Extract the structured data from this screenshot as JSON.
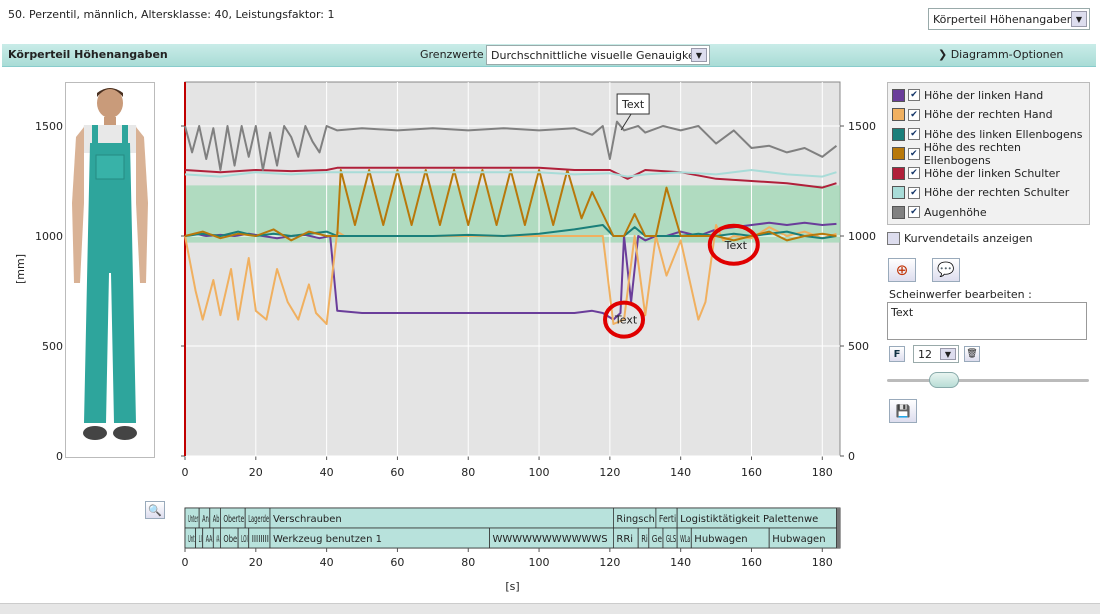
{
  "info_text": "50. Perzentil, männlich, Altersklasse: 40, Leistungsfaktor: 1",
  "top_select": "Körperteil Höhenangaben",
  "panel_title": "Körperteil Höhenangaben",
  "grenz_label": "Grenzwerte :",
  "grenz_select": "Durchschnittliche visuelle Genauigkeit",
  "diagram_options": "❯ Diagramm-Optionen",
  "kurvendetails": "Kurvendetails anzeigen",
  "scheinwerfer_label": "Scheinwerfer bearbeiten :",
  "scheinwerfer_text": "Text",
  "font_size": "12",
  "f_label": "F",
  "colors": {
    "accent": "#b8e2dc",
    "zone": "#9fd8b4",
    "redline": "#c00000"
  },
  "chart_data": {
    "type": "line",
    "xlabel": "[s]",
    "ylabel": "[mm]",
    "xlim": [
      0,
      185
    ],
    "ylim": [
      0,
      1700
    ],
    "x_ticks": [
      0,
      20,
      40,
      60,
      80,
      100,
      120,
      140,
      160,
      180
    ],
    "y_ticks": [
      0,
      500,
      1000,
      1500
    ],
    "x_tick_labels": [
      "0",
      "20",
      "40",
      "60",
      "80",
      "100",
      "120",
      "140",
      "160",
      "180"
    ],
    "y_tick_labels": [
      "0",
      "500",
      "1000",
      "1500"
    ],
    "zone": [
      970,
      1230
    ],
    "grid": true,
    "annotations": [
      {
        "text": "Text",
        "x": 126,
        "y": 1600,
        "boxed": true
      },
      {
        "text": "Text",
        "x": 124,
        "y": 620,
        "circled": true
      },
      {
        "text": "Text",
        "x": 155,
        "y": 960,
        "circled": true
      }
    ],
    "series": [
      {
        "name": "Höhe der linken Hand",
        "color": "#6a3d9a",
        "x": [
          0,
          3,
          6,
          10,
          14,
          18,
          22,
          26,
          30,
          34,
          38,
          41,
          43,
          50,
          60,
          70,
          80,
          90,
          100,
          110,
          115,
          118,
          121,
          123,
          124,
          126,
          128,
          130,
          133,
          136,
          140,
          145,
          150,
          155,
          160,
          165,
          170,
          175,
          180,
          184
        ],
        "y": [
          1000,
          1010,
          1000,
          1005,
          1000,
          1010,
          1000,
          990,
          1000,
          1005,
          990,
          1000,
          660,
          650,
          650,
          650,
          650,
          650,
          650,
          650,
          660,
          650,
          620,
          650,
          1000,
          700,
          1000,
          980,
          1000,
          1000,
          1020,
          1000,
          1030,
          1040,
          1050,
          1060,
          1050,
          1060,
          1050,
          1055
        ]
      },
      {
        "name": "Höhe der rechten Hand",
        "color": "#f0b060",
        "x": [
          0,
          3,
          5,
          8,
          10,
          13,
          15,
          18,
          20,
          23,
          26,
          29,
          32,
          35,
          37,
          40,
          43,
          45,
          50,
          60,
          70,
          80,
          90,
          100,
          110,
          115,
          118,
          121,
          124,
          127,
          130,
          133,
          136,
          140,
          145,
          147,
          150,
          152,
          155,
          160,
          165,
          170,
          175,
          180,
          184
        ],
        "y": [
          1000,
          750,
          620,
          800,
          640,
          850,
          620,
          900,
          660,
          620,
          850,
          700,
          620,
          780,
          650,
          600,
          1020,
          1000,
          1000,
          1000,
          1000,
          1000,
          1000,
          1000,
          1000,
          1000,
          1000,
          600,
          620,
          1000,
          640,
          1000,
          820,
          980,
          620,
          700,
          1050,
          980,
          1000,
          990,
          1040,
          1000,
          1020,
          990,
          1010
        ]
      },
      {
        "name": "Höhe des linken Ellenbogens",
        "color": "#1a7f7a",
        "x": [
          0,
          5,
          10,
          15,
          20,
          25,
          30,
          35,
          40,
          43,
          50,
          60,
          70,
          80,
          90,
          100,
          110,
          118,
          121,
          124,
          127,
          130,
          135,
          140,
          145,
          150,
          155,
          160,
          165,
          170,
          175,
          180,
          184
        ],
        "y": [
          1000,
          1010,
          1000,
          1020,
          1000,
          1010,
          1000,
          1010,
          1020,
          1000,
          1000,
          1000,
          1000,
          1005,
          1000,
          1010,
          1030,
          1050,
          1000,
          1000,
          1040,
          1000,
          1000,
          1000,
          1010,
          1000,
          1010,
          1000,
          1010,
          1020,
          1000,
          990,
          1000
        ]
      },
      {
        "name": "Höhe des rechten Ellenbogens",
        "color": "#b8780a",
        "x": [
          0,
          5,
          10,
          15,
          20,
          25,
          30,
          35,
          40,
          43,
          44,
          48,
          52,
          56,
          60,
          64,
          68,
          72,
          76,
          80,
          84,
          88,
          92,
          96,
          100,
          104,
          108,
          112,
          115,
          118,
          121,
          124,
          127,
          130,
          133,
          136,
          140,
          145,
          150,
          155,
          160,
          165,
          170,
          175,
          180,
          184
        ],
        "y": [
          1000,
          1020,
          990,
          1010,
          1000,
          1030,
          980,
          1020,
          1000,
          1000,
          1300,
          1050,
          1300,
          1050,
          1300,
          1050,
          1300,
          1050,
          1300,
          1050,
          1300,
          1050,
          1300,
          1050,
          1300,
          1050,
          1300,
          1080,
          1200,
          1100,
          1000,
          1000,
          1100,
          1000,
          1000,
          1220,
          1000,
          1000,
          1000,
          980,
          1000,
          1020,
          980,
          1000,
          1010,
          1000
        ]
      },
      {
        "name": "Höhe der linken Schulter",
        "color": "#b0203a",
        "x": [
          0,
          10,
          20,
          30,
          40,
          43,
          50,
          60,
          70,
          80,
          90,
          100,
          110,
          120,
          125,
          130,
          140,
          150,
          160,
          170,
          180,
          184
        ],
        "y": [
          1300,
          1290,
          1300,
          1295,
          1300,
          1310,
          1310,
          1310,
          1310,
          1310,
          1310,
          1310,
          1300,
          1300,
          1260,
          1300,
          1290,
          1260,
          1250,
          1240,
          1220,
          1240
        ]
      },
      {
        "name": "Höhe der rechten Schulter",
        "color": "#a8dcd8",
        "x": [
          0,
          10,
          20,
          30,
          40,
          43,
          50,
          60,
          70,
          80,
          90,
          100,
          110,
          120,
          125,
          130,
          140,
          150,
          160,
          170,
          180,
          184
        ],
        "y": [
          1280,
          1270,
          1290,
          1280,
          1290,
          1290,
          1290,
          1290,
          1290,
          1290,
          1290,
          1290,
          1280,
          1285,
          1270,
          1280,
          1290,
          1280,
          1300,
          1280,
          1270,
          1290
        ]
      },
      {
        "name": "Augenhöhe",
        "color": "#808080",
        "x": [
          0,
          2,
          4,
          6,
          8,
          10,
          12,
          14,
          16,
          18,
          20,
          22,
          24,
          26,
          28,
          30,
          32,
          34,
          36,
          38,
          40,
          43,
          50,
          60,
          70,
          80,
          90,
          100,
          110,
          115,
          118,
          120,
          122,
          124,
          126,
          128,
          130,
          135,
          140,
          145,
          150,
          155,
          160,
          165,
          170,
          175,
          180,
          184
        ],
        "y": [
          1500,
          1380,
          1500,
          1350,
          1490,
          1300,
          1500,
          1320,
          1500,
          1360,
          1500,
          1300,
          1470,
          1320,
          1500,
          1450,
          1360,
          1500,
          1430,
          1380,
          1500,
          1480,
          1490,
          1480,
          1490,
          1480,
          1490,
          1480,
          1490,
          1460,
          1500,
          1350,
          1520,
          1480,
          1490,
          1500,
          1470,
          1500,
          1480,
          1500,
          1420,
          1480,
          1400,
          1410,
          1380,
          1400,
          1360,
          1410
        ]
      }
    ]
  },
  "timeline": {
    "row1": [
      {
        "label": "Unter",
        "x0": 0,
        "x1": 4
      },
      {
        "label": "An",
        "x0": 4,
        "x1": 7
      },
      {
        "label": "Ab",
        "x0": 7,
        "x1": 10
      },
      {
        "label": "Oberte",
        "x0": 10,
        "x1": 17
      },
      {
        "label": "Lagerde",
        "x0": 17,
        "x1": 24
      },
      {
        "label": "Verschrauben",
        "x0": 24,
        "x1": 121
      },
      {
        "label": "Ringsch",
        "x0": 121,
        "x1": 133
      },
      {
        "label": "Ferti",
        "x0": 133,
        "x1": 139
      },
      {
        "label": "Logistiktätigkeit Palettenwe",
        "x0": 139,
        "x1": 184
      }
    ],
    "row2": [
      {
        "label": "Unt",
        "x0": 0,
        "x1": 3
      },
      {
        "label": "LI",
        "x0": 3,
        "x1": 5
      },
      {
        "label": "AA",
        "x0": 5,
        "x1": 8
      },
      {
        "label": "AA",
        "x0": 8,
        "x1": 10
      },
      {
        "label": "Obe",
        "x0": 10,
        "x1": 15
      },
      {
        "label": "LOI",
        "x0": 15,
        "x1": 18
      },
      {
        "label": "IIIIIIII",
        "x0": 18,
        "x1": 24
      },
      {
        "label": "Werkzeug benutzen 1",
        "x0": 24,
        "x1": 86
      },
      {
        "label": "WWWWWWWWWWWS",
        "x0": 86,
        "x1": 121
      },
      {
        "label": "RRi",
        "x0": 121,
        "x1": 128
      },
      {
        "label": "Ri",
        "x0": 128,
        "x1": 131
      },
      {
        "label": "Ge",
        "x0": 131,
        "x1": 135
      },
      {
        "label": "GLS",
        "x0": 135,
        "x1": 139
      },
      {
        "label": "WLa",
        "x0": 139,
        "x1": 143
      },
      {
        "label": "Hubwagen",
        "x0": 143,
        "x1": 165
      },
      {
        "label": "Hubwagen",
        "x0": 165,
        "x1": 184
      }
    ],
    "x_tick_labels": [
      "0",
      "20",
      "40",
      "60",
      "80",
      "100",
      "120",
      "140",
      "160",
      "180"
    ],
    "xlabel": "[s]"
  }
}
